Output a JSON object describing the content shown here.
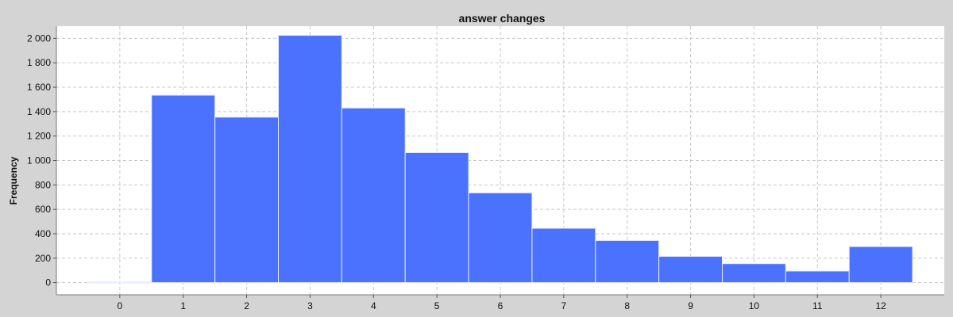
{
  "chart_data": {
    "type": "bar",
    "title": "answer changes",
    "xlabel": "",
    "ylabel": "Frequency",
    "categories": [
      "0",
      "1",
      "2",
      "3",
      "4",
      "5",
      "6",
      "7",
      "8",
      "9",
      "10",
      "11",
      "12"
    ],
    "values": [
      5,
      1535,
      1355,
      2025,
      1430,
      1065,
      735,
      445,
      345,
      215,
      155,
      95,
      295
    ],
    "x_ticks": [
      "0",
      "1",
      "2",
      "3",
      "4",
      "5",
      "6",
      "7",
      "8",
      "9",
      "10",
      "11",
      "12"
    ],
    "y_ticks": [
      "0",
      "200",
      "400",
      "600",
      "800",
      "1 000",
      "1 200",
      "1 400",
      "1 600",
      "1 800",
      "2 000"
    ],
    "y_tick_values": [
      0,
      200,
      400,
      600,
      800,
      1000,
      1200,
      1400,
      1600,
      1800,
      2000
    ],
    "ylim": [
      -100,
      2100
    ],
    "xlim": [
      -1,
      13
    ],
    "grid": true,
    "colors": {
      "bar": "#4a72ff",
      "bar_edge": "#e6ecff",
      "plot_bg": "#ffffff",
      "page_bg": "#d4d4d4",
      "grid": "#c8c8c8"
    }
  }
}
